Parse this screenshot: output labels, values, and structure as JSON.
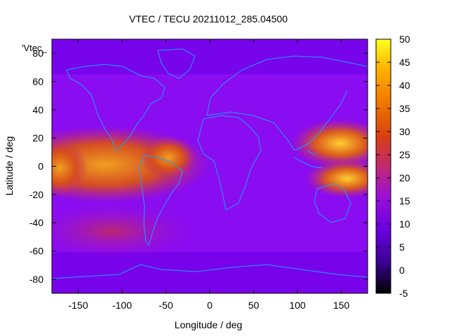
{
  "chart_data": {
    "type": "heatmap",
    "title": "VTEC / TECU 20211012_285.04500",
    "xlabel": "Longitude / deg",
    "ylabel": "Latitude / deg",
    "key_label": "'Vtec_",
    "xlim": [
      -180,
      180
    ],
    "ylim": [
      -90,
      90
    ],
    "x_ticks": [
      -150,
      -100,
      -50,
      0,
      50,
      100,
      150
    ],
    "y_ticks": [
      -80,
      -60,
      -40,
      -20,
      0,
      20,
      40,
      60,
      80
    ],
    "colorbar": {
      "range": [
        -5,
        50
      ],
      "ticks": [
        -5,
        0,
        5,
        10,
        15,
        20,
        25,
        30,
        35,
        40,
        45,
        50
      ],
      "colormap": "gnuplot-pm3d-black-purple-red-orange-yellow"
    },
    "grid": false,
    "features": [
      {
        "name": "equatorial-anomaly-america-atlantic",
        "lon": [
          -180,
          -25
        ],
        "lat": [
          -25,
          25
        ],
        "vtec_approx": [
          25,
          40
        ]
      },
      {
        "name": "equatorial-anomaly-west-pacific",
        "lon": [
          110,
          180
        ],
        "lat": [
          -25,
          30
        ],
        "vtec_approx": [
          25,
          47
        ]
      },
      {
        "name": "background",
        "vtec_approx": [
          8,
          16
        ]
      }
    ]
  }
}
